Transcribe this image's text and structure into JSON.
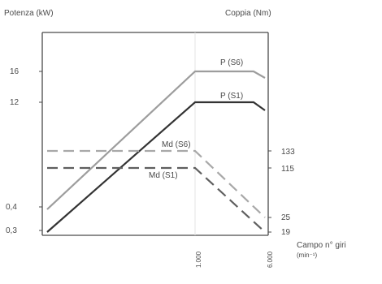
{
  "chart_data": {
    "type": "line",
    "left_axis": {
      "label": "Potenza (kW)",
      "tick_labels": [
        "16",
        "12",
        "0,4",
        "0,3"
      ]
    },
    "right_axis": {
      "label": "Coppia (Nm)",
      "tick_labels": [
        "133",
        "115",
        "25",
        "19"
      ]
    },
    "x_axis": {
      "label_line_1": "Campo n° giri",
      "label_line_2": "(min⁻¹)",
      "tick_labels": [
        "1.000",
        "6.000"
      ]
    },
    "series": [
      {
        "name": "P (S6)",
        "style": "solid",
        "color": "#9d9d9d",
        "points": [
          {
            "x": 0,
            "y_left": "0,4"
          },
          {
            "x": 1000,
            "y_left": "16"
          },
          {
            "x": 5000,
            "y_left": "16"
          },
          {
            "x": 6000,
            "y_left": "14"
          }
        ]
      },
      {
        "name": "P (S1)",
        "style": "solid",
        "color": "#333333",
        "points": [
          {
            "x": 0,
            "y_left": "0,3"
          },
          {
            "x": 1000,
            "y_left": "12"
          },
          {
            "x": 5000,
            "y_left": "12"
          },
          {
            "x": 6000,
            "y_left": "11"
          }
        ]
      },
      {
        "name": "Md (S6)",
        "style": "dashed",
        "color": "#a8a8a8",
        "points": [
          {
            "x": 0,
            "y_right": "133"
          },
          {
            "x": 1000,
            "y_right": "133"
          },
          {
            "x": 6000,
            "y_right": "25"
          }
        ]
      },
      {
        "name": "Md (S1)",
        "style": "dashed",
        "color": "#5f5f5f",
        "points": [
          {
            "x": 0,
            "y_right": "115"
          },
          {
            "x": 1000,
            "y_right": "115"
          },
          {
            "x": 6000,
            "y_right": "19"
          }
        ]
      }
    ],
    "grid": true
  }
}
